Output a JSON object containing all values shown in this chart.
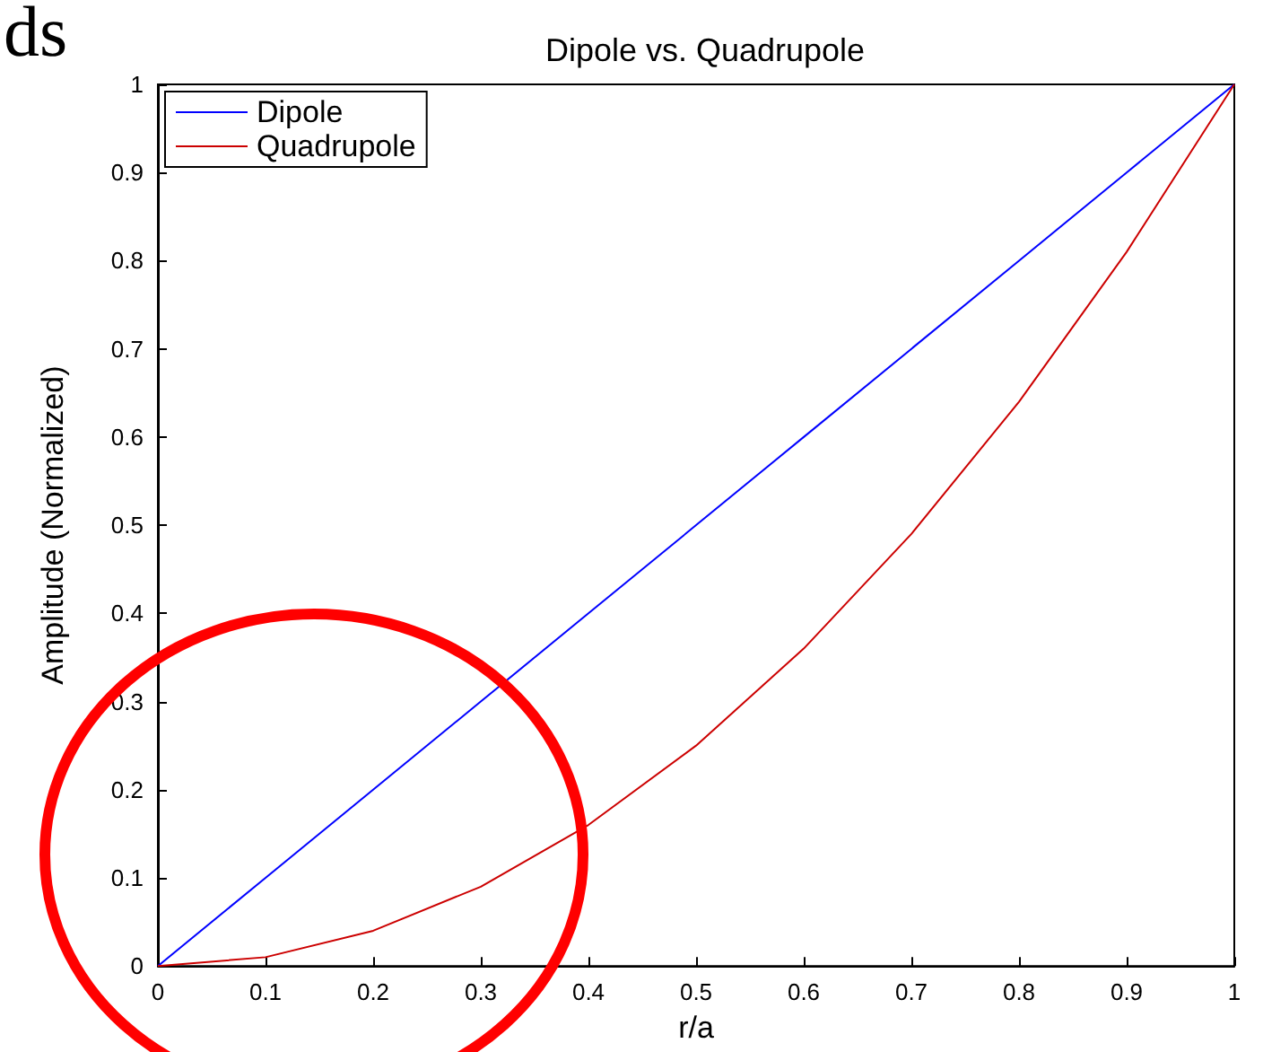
{
  "chart_data": {
    "type": "line",
    "title": "Dipole vs. Quadrupole",
    "xlabel": "r/a",
    "ylabel": "Amplitude (Normalized)",
    "annotations": [
      "ds"
    ],
    "x": [
      0,
      0.1,
      0.2,
      0.3,
      0.4,
      0.5,
      0.6,
      0.7,
      0.8,
      0.9,
      1
    ],
    "series": [
      {
        "name": "Dipole",
        "color": "#0000ff",
        "values": [
          0,
          0.1,
          0.2,
          0.3,
          0.4,
          0.5,
          0.6,
          0.7,
          0.8,
          0.9,
          1
        ]
      },
      {
        "name": "Quadrupole",
        "color": "#cc0000",
        "values": [
          0,
          0.01,
          0.04,
          0.09,
          0.16,
          0.25,
          0.36,
          0.49,
          0.64,
          0.81,
          1
        ]
      }
    ],
    "xlim": [
      0,
      1
    ],
    "xticks": [
      0,
      0.1,
      0.2,
      0.3,
      0.4,
      0.5,
      0.6,
      0.7,
      0.8,
      0.9,
      1
    ],
    "ylim": [
      0,
      1
    ],
    "yticks": [
      0,
      0.1,
      0.2,
      0.3,
      0.4,
      0.5,
      0.6,
      0.7,
      0.8,
      0.9,
      1
    ],
    "grid": false,
    "legend": "top left",
    "marker": "none",
    "line_style": "solid"
  }
}
